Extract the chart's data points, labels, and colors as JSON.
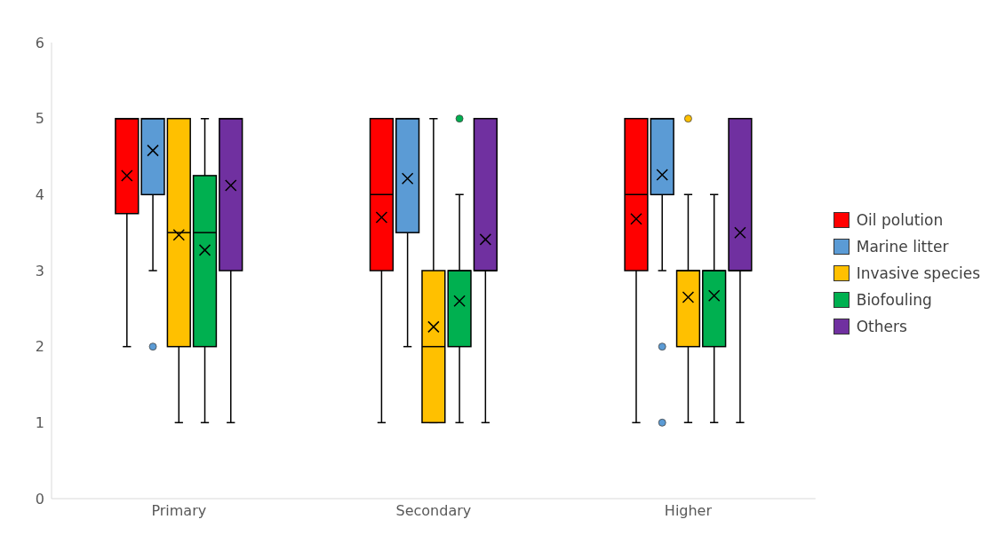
{
  "chart_data": {
    "type": "box",
    "categories": [
      "Primary",
      "Secondary",
      "Higher"
    ],
    "ylim": [
      0,
      6
    ],
    "yticks": [
      0,
      1,
      2,
      3,
      4,
      5,
      6
    ],
    "grid": false,
    "legend": "right",
    "series": [
      {
        "name": "Oil polution",
        "color": "#ff0000",
        "boxes": [
          {
            "low": 2,
            "q1": 3.75,
            "median": 5,
            "q3": 5,
            "high": 5,
            "mean": 4.25
          },
          {
            "low": 1,
            "q1": 3,
            "median": 4,
            "q3": 5,
            "high": 5,
            "mean": 3.7
          },
          {
            "low": 1,
            "q1": 3,
            "median": 4,
            "q3": 5,
            "high": 5,
            "mean": 3.68
          }
        ]
      },
      {
        "name": "Marine litter",
        "color": "#5b9bd5",
        "boxes": [
          {
            "low": 3,
            "q1": 4,
            "median": 5,
            "q3": 5,
            "high": 5,
            "mean": 4.58,
            "outliers": [
              2
            ]
          },
          {
            "low": 2,
            "q1": 3.5,
            "median": 5,
            "q3": 5,
            "high": 5,
            "mean": 4.21
          },
          {
            "low": 3,
            "q1": 4,
            "median": 5,
            "q3": 5,
            "high": 5,
            "mean": 4.26,
            "outliers": [
              2,
              1
            ]
          }
        ]
      },
      {
        "name": "Invasive species",
        "color": "#ffc000",
        "boxes": [
          {
            "low": 1,
            "q1": 2,
            "median": 3.5,
            "q3": 5,
            "high": 5,
            "mean": 3.47
          },
          {
            "low": 1,
            "q1": 1,
            "median": 2,
            "q3": 3,
            "high": 5,
            "mean": 2.26
          },
          {
            "low": 1,
            "q1": 2,
            "median": 3,
            "q3": 3,
            "high": 4,
            "mean": 2.65,
            "outliers": [
              5
            ]
          }
        ]
      },
      {
        "name": "Biofouling",
        "color": "#00b050",
        "boxes": [
          {
            "low": 1,
            "q1": 2,
            "median": 3.5,
            "q3": 4.25,
            "high": 5,
            "mean": 3.27
          },
          {
            "low": 1,
            "q1": 2,
            "median": 3,
            "q3": 3,
            "high": 4,
            "mean": 2.6,
            "outliers": [
              5
            ]
          },
          {
            "low": 1,
            "q1": 2,
            "median": 3,
            "q3": 3,
            "high": 4,
            "mean": 2.67
          }
        ]
      },
      {
        "name": "Others",
        "color": "#7030a0",
        "boxes": [
          {
            "low": 1,
            "q1": 3,
            "median": 5,
            "q3": 5,
            "high": 5,
            "mean": 4.12
          },
          {
            "low": 1,
            "q1": 3,
            "median": 3,
            "q3": 5,
            "high": 5,
            "mean": 3.41
          },
          {
            "low": 1,
            "q1": 3,
            "median": 3,
            "q3": 5,
            "high": 5,
            "mean": 3.5
          }
        ]
      }
    ]
  }
}
